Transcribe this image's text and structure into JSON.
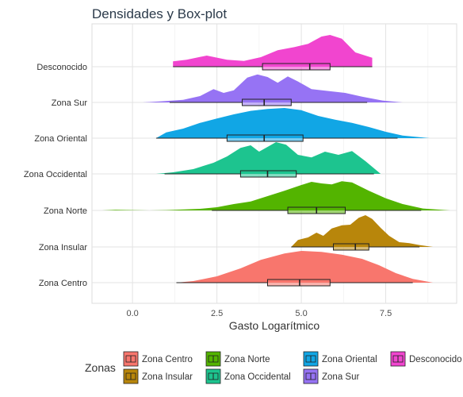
{
  "chart_data": {
    "type": "ridgeline-density-boxplot",
    "title": "Densidades y Box-plot",
    "xlabel": "Gasto Logarítmico",
    "ylabel": "",
    "xlim": [
      -1.2,
      9.6
    ],
    "x_ticks": [
      0.0,
      2.5,
      5.0,
      7.5
    ],
    "x_tick_labels": [
      "0.0",
      "2.5",
      "5.0",
      "7.5"
    ],
    "grid": true,
    "legend": {
      "title": "Zonas",
      "position": "bottom"
    },
    "series": [
      {
        "name": "Zona Centro",
        "color": "#F8766D",
        "box": {
          "whisker_low": 1.3,
          "q1": 4.0,
          "median": 4.95,
          "q3": 5.85,
          "whisker_high": 8.3
        },
        "density": [
          [
            1.3,
            0
          ],
          [
            1.8,
            0.05
          ],
          [
            2.5,
            0.2
          ],
          [
            3.2,
            0.45
          ],
          [
            3.8,
            0.72
          ],
          [
            4.5,
            0.92
          ],
          [
            5.0,
            1.0
          ],
          [
            5.6,
            0.97
          ],
          [
            6.2,
            0.88
          ],
          [
            6.8,
            0.75
          ],
          [
            7.3,
            0.55
          ],
          [
            7.8,
            0.3
          ],
          [
            8.3,
            0.12
          ],
          [
            8.9,
            0
          ]
        ]
      },
      {
        "name": "Zona Insular",
        "color": "#B8860B",
        "box": {
          "whisker_low": 4.7,
          "q1": 5.95,
          "median": 6.6,
          "q3": 7.0,
          "whisker_high": 8.5
        },
        "density": [
          [
            4.7,
            0
          ],
          [
            4.9,
            0.22
          ],
          [
            5.2,
            0.3
          ],
          [
            5.45,
            0.45
          ],
          [
            5.65,
            0.35
          ],
          [
            5.9,
            0.58
          ],
          [
            6.2,
            0.68
          ],
          [
            6.45,
            0.7
          ],
          [
            6.7,
            0.92
          ],
          [
            6.9,
            1.0
          ],
          [
            7.1,
            0.88
          ],
          [
            7.35,
            0.6
          ],
          [
            7.6,
            0.35
          ],
          [
            7.9,
            0.15
          ],
          [
            8.2,
            0.12
          ],
          [
            8.5,
            0.06
          ],
          [
            8.9,
            0
          ]
        ]
      },
      {
        "name": "Zona Norte",
        "color": "#53B400",
        "box": {
          "whisker_low": 2.35,
          "q1": 4.6,
          "median": 5.45,
          "q3": 6.3,
          "whisker_high": 8.55
        },
        "density": [
          [
            -0.9,
            0
          ],
          [
            -0.5,
            0.02
          ],
          [
            0.5,
            0.0
          ],
          [
            1.0,
            0.01
          ],
          [
            2.0,
            0.05
          ],
          [
            2.5,
            0.1
          ],
          [
            3.0,
            0.2
          ],
          [
            3.5,
            0.28
          ],
          [
            4.0,
            0.45
          ],
          [
            4.5,
            0.62
          ],
          [
            5.0,
            0.8
          ],
          [
            5.3,
            0.9
          ],
          [
            5.6,
            0.85
          ],
          [
            5.9,
            0.82
          ],
          [
            6.2,
            0.92
          ],
          [
            6.5,
            0.88
          ],
          [
            7.0,
            0.62
          ],
          [
            7.5,
            0.38
          ],
          [
            8.0,
            0.2
          ],
          [
            8.6,
            0.06
          ],
          [
            9.4,
            0
          ]
        ]
      },
      {
        "name": "Zona Occidental",
        "color": "#1DC48F",
        "box": {
          "whisker_low": 0.95,
          "q1": 3.2,
          "median": 4.0,
          "q3": 4.85,
          "whisker_high": 7.15
        },
        "density": [
          [
            0.7,
            0
          ],
          [
            1.2,
            0.05
          ],
          [
            1.8,
            0.15
          ],
          [
            2.4,
            0.35
          ],
          [
            2.8,
            0.55
          ],
          [
            3.2,
            0.82
          ],
          [
            3.5,
            0.9
          ],
          [
            3.75,
            0.7
          ],
          [
            4.0,
            0.85
          ],
          [
            4.25,
            1.0
          ],
          [
            4.55,
            0.92
          ],
          [
            4.9,
            0.6
          ],
          [
            5.3,
            0.52
          ],
          [
            5.7,
            0.7
          ],
          [
            6.1,
            0.6
          ],
          [
            6.5,
            0.72
          ],
          [
            6.9,
            0.4
          ],
          [
            7.35,
            0
          ]
        ]
      },
      {
        "name": "Zona Oriental",
        "color": "#11A6E5",
        "box": {
          "whisker_low": 0.7,
          "q1": 2.8,
          "median": 3.9,
          "q3": 5.05,
          "whisker_high": 7.85
        },
        "density": [
          [
            0.7,
            0
          ],
          [
            1.0,
            0.18
          ],
          [
            1.5,
            0.3
          ],
          [
            2.0,
            0.48
          ],
          [
            2.5,
            0.62
          ],
          [
            3.0,
            0.75
          ],
          [
            3.5,
            0.86
          ],
          [
            4.0,
            0.92
          ],
          [
            4.5,
            0.95
          ],
          [
            5.0,
            0.88
          ],
          [
            5.5,
            0.7
          ],
          [
            6.0,
            0.58
          ],
          [
            6.5,
            0.48
          ],
          [
            7.0,
            0.35
          ],
          [
            7.5,
            0.2
          ],
          [
            8.0,
            0.08
          ],
          [
            8.8,
            0
          ]
        ]
      },
      {
        "name": "Zona Sur",
        "color": "#9673F4",
        "box": {
          "whisker_low": 1.1,
          "q1": 3.25,
          "median": 3.9,
          "q3": 4.7,
          "whisker_high": 6.95
        },
        "density": [
          [
            0.3,
            0
          ],
          [
            0.8,
            0.03
          ],
          [
            1.5,
            0.08
          ],
          [
            2.0,
            0.2
          ],
          [
            2.4,
            0.42
          ],
          [
            2.7,
            0.3
          ],
          [
            3.0,
            0.38
          ],
          [
            3.4,
            0.78
          ],
          [
            3.7,
            0.88
          ],
          [
            4.0,
            0.8
          ],
          [
            4.3,
            0.62
          ],
          [
            4.6,
            0.82
          ],
          [
            4.9,
            0.66
          ],
          [
            5.3,
            0.42
          ],
          [
            5.8,
            0.36
          ],
          [
            6.3,
            0.3
          ],
          [
            6.8,
            0.18
          ],
          [
            7.4,
            0.06
          ],
          [
            8.0,
            0
          ]
        ]
      },
      {
        "name": "Desconocido",
        "color": "#F145CF",
        "box": {
          "whisker_low": 1.2,
          "q1": 3.85,
          "median": 5.25,
          "q3": 5.85,
          "whisker_high": 7.1
        },
        "density": [
          [
            1.2,
            0
          ],
          [
            1.2,
            0.17
          ],
          [
            1.6,
            0.22
          ],
          [
            2.2,
            0.35
          ],
          [
            2.8,
            0.22
          ],
          [
            3.3,
            0.18
          ],
          [
            3.8,
            0.3
          ],
          [
            4.3,
            0.52
          ],
          [
            4.8,
            0.62
          ],
          [
            5.2,
            0.72
          ],
          [
            5.6,
            0.95
          ],
          [
            5.85,
            1.0
          ],
          [
            6.2,
            0.88
          ],
          [
            6.6,
            0.45
          ],
          [
            7.1,
            0.28
          ],
          [
            7.1,
            0
          ]
        ]
      }
    ]
  }
}
